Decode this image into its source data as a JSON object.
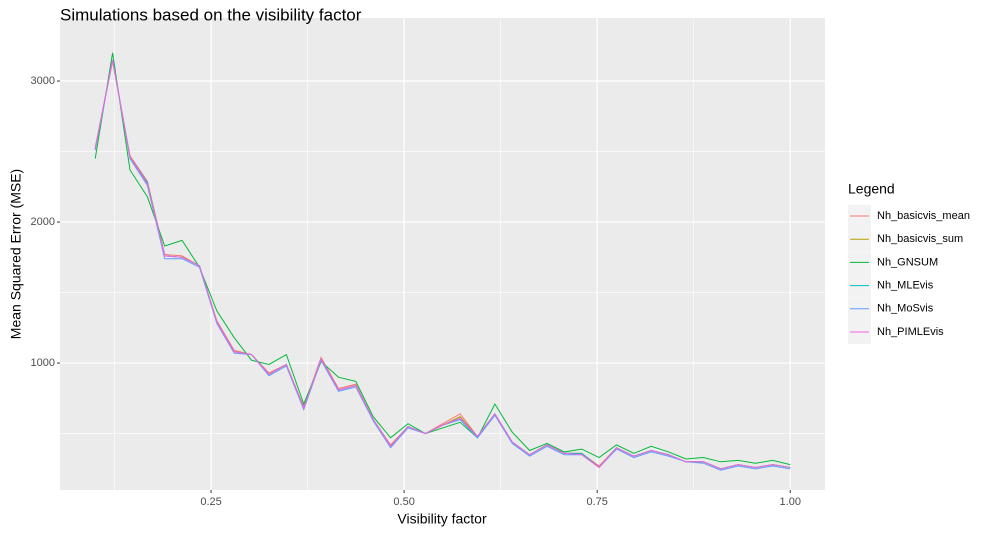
{
  "chart_data": {
    "type": "line",
    "title": "Simulations based on the visibility factor",
    "x_label": "Visibility factor",
    "y_label": "Mean Squared Error (MSE)",
    "legend_title": "Legend",
    "x": [
      0.1,
      0.1225,
      0.145,
      0.1675,
      0.19,
      0.2125,
      0.235,
      0.2575,
      0.28,
      0.3025,
      0.325,
      0.3475,
      0.37,
      0.3925,
      0.415,
      0.4375,
      0.46,
      0.4825,
      0.505,
      0.5275,
      0.55,
      0.5725,
      0.595,
      0.6175,
      0.64,
      0.6625,
      0.685,
      0.7075,
      0.73,
      0.7525,
      0.775,
      0.7975,
      0.82,
      0.8425,
      0.865,
      0.8875,
      0.91,
      0.9325,
      0.955,
      0.9775,
      1.0
    ],
    "series": [
      {
        "name": "Nh_basicvis_mean",
        "color": "#F8766D",
        "values": [
          2530,
          3140,
          2470,
          2290,
          1770,
          1760,
          1690,
          1300,
          1090,
          1060,
          930,
          990,
          690,
          1040,
          820,
          850,
          600,
          420,
          550,
          500,
          570,
          640,
          480,
          640,
          440,
          350,
          420,
          360,
          360,
          270,
          400,
          340,
          380,
          350,
          300,
          300,
          250,
          280,
          260,
          280,
          260
        ]
      },
      {
        "name": "Nh_basicvis_sum",
        "color": "#B79F00",
        "values": [
          2520,
          3150,
          2460,
          2280,
          1760,
          1750,
          1690,
          1290,
          1080,
          1060,
          920,
          990,
          680,
          1030,
          810,
          840,
          600,
          410,
          550,
          500,
          560,
          620,
          480,
          640,
          440,
          350,
          420,
          360,
          360,
          260,
          400,
          340,
          380,
          350,
          300,
          300,
          250,
          280,
          260,
          280,
          260
        ]
      },
      {
        "name": "Nh_GNSUM",
        "color": "#00BA38",
        "values": [
          2450,
          3200,
          2370,
          2180,
          1830,
          1870,
          1680,
          1370,
          1180,
          1020,
          990,
          1060,
          710,
          1010,
          900,
          870,
          620,
          470,
          570,
          500,
          540,
          580,
          470,
          710,
          510,
          380,
          430,
          370,
          390,
          330,
          420,
          360,
          410,
          370,
          320,
          330,
          300,
          310,
          290,
          310,
          280
        ]
      },
      {
        "name": "Nh_MLEvis",
        "color": "#00BFC4",
        "values": [
          2520,
          3150,
          2460,
          2280,
          1760,
          1750,
          1690,
          1290,
          1080,
          1060,
          920,
          990,
          680,
          1030,
          810,
          840,
          600,
          410,
          550,
          500,
          560,
          600,
          480,
          640,
          440,
          350,
          420,
          360,
          360,
          260,
          400,
          340,
          380,
          350,
          300,
          300,
          250,
          280,
          260,
          280,
          260
        ]
      },
      {
        "name": "Nh_MoSvis",
        "color": "#619CFF",
        "values": [
          2510,
          3150,
          2450,
          2260,
          1740,
          1740,
          1680,
          1280,
          1070,
          1060,
          910,
          980,
          670,
          1020,
          800,
          830,
          590,
          400,
          540,
          500,
          560,
          600,
          470,
          630,
          430,
          340,
          410,
          350,
          350,
          260,
          390,
          330,
          370,
          340,
          300,
          290,
          240,
          270,
          250,
          270,
          250
        ]
      },
      {
        "name": "Nh_PIMLEvis",
        "color": "#F564E3",
        "values": [
          2520,
          3150,
          2460,
          2270,
          1760,
          1750,
          1690,
          1290,
          1080,
          1060,
          920,
          990,
          680,
          1030,
          810,
          840,
          600,
          410,
          550,
          500,
          560,
          610,
          480,
          640,
          440,
          350,
          420,
          360,
          350,
          260,
          400,
          340,
          380,
          350,
          300,
          300,
          250,
          280,
          260,
          280,
          260
        ]
      }
    ],
    "xlim": [
      0.0544,
      1.045
    ],
    "ylim": [
      100,
      3447
    ],
    "xticks": [
      0.25,
      {
        "value": 0.5,
        "label": "0.50"
      },
      0.75,
      {
        "value": 1.0,
        "label": "1.00"
      }
    ],
    "yticks": [
      1000,
      2000,
      3000
    ],
    "grid": true,
    "legend": "right"
  }
}
